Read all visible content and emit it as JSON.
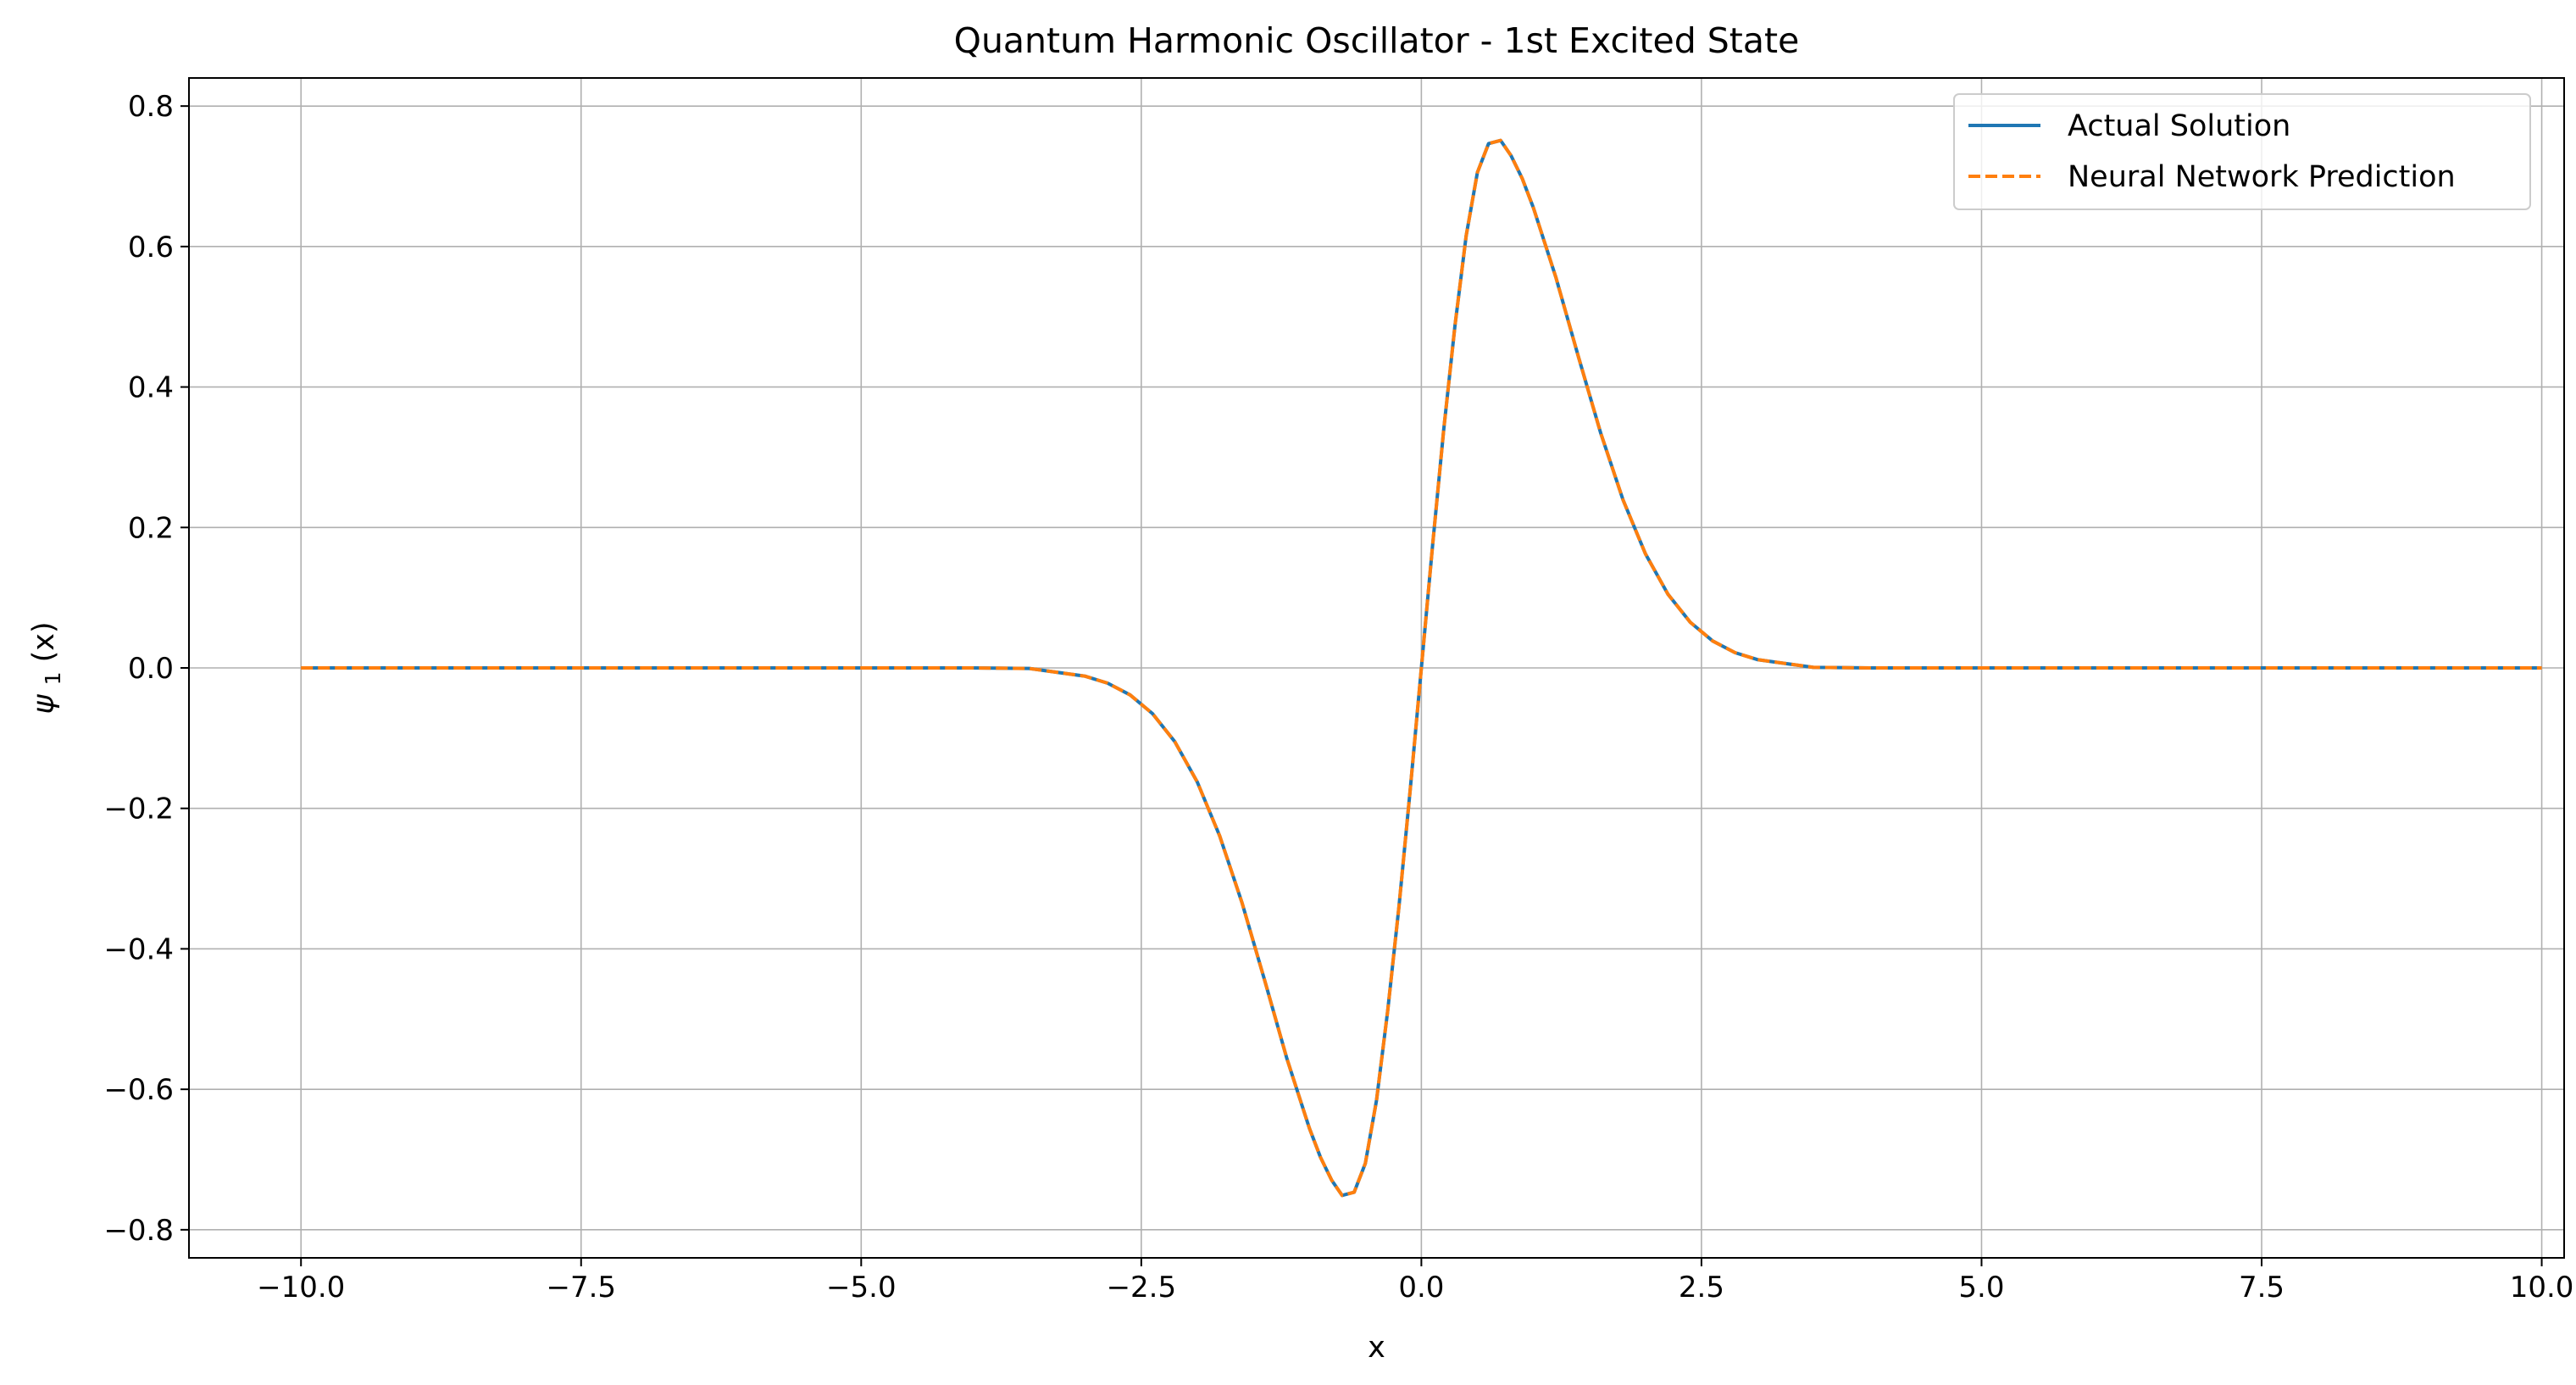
{
  "chart_data": {
    "type": "line",
    "title": "Quantum Harmonic Oscillator - 1st Excited State",
    "xlabel": "x",
    "ylabel": "ψ1(x)",
    "ylabel_base": "ψ",
    "ylabel_sub": "1",
    "ylabel_suffix": "(x)",
    "xlim": [
      -11.0,
      10.2
    ],
    "ylim": [
      -0.84,
      0.84
    ],
    "xticks": [
      -10.0,
      -7.5,
      -5.0,
      -2.5,
      0.0,
      2.5,
      5.0,
      7.5,
      10.0
    ],
    "xtick_labels": [
      "−10.0",
      "−7.5",
      "−5.0",
      "−2.5",
      "0.0",
      "2.5",
      "5.0",
      "7.5",
      "10.0"
    ],
    "yticks": [
      -0.8,
      -0.6,
      -0.4,
      -0.2,
      0.0,
      0.2,
      0.4,
      0.6,
      0.8
    ],
    "ytick_labels": [
      "−0.8",
      "−0.6",
      "−0.4",
      "−0.2",
      "0.0",
      "0.2",
      "0.4",
      "0.6",
      "0.8"
    ],
    "grid": true,
    "legend_position": "top-right",
    "series": [
      {
        "name": "Actual Solution",
        "color": "#1f77b4",
        "style": "solid",
        "x": [
          -10.0,
          -9.0,
          -8.0,
          -7.0,
          -6.0,
          -5.0,
          -4.0,
          -3.5,
          -3.0,
          -2.8,
          -2.6,
          -2.4,
          -2.2,
          -2.0,
          -1.8,
          -1.6,
          -1.4,
          -1.2,
          -1.0,
          -0.9,
          -0.8,
          -0.707,
          -0.6,
          -0.5,
          -0.4,
          -0.3,
          -0.2,
          -0.1,
          0.0,
          0.1,
          0.2,
          0.3,
          0.4,
          0.5,
          0.6,
          0.707,
          0.8,
          0.9,
          1.0,
          1.2,
          1.4,
          1.6,
          1.8,
          2.0,
          2.2,
          2.4,
          2.6,
          2.8,
          3.0,
          3.5,
          4.0,
          5.0,
          6.0,
          7.0,
          8.0,
          9.0,
          10.0
        ],
        "y": [
          0.0,
          0.0,
          0.0,
          0.0,
          0.0,
          0.0,
          0.0,
          -0.0008,
          -0.0118,
          -0.0217,
          -0.0384,
          -0.065,
          -0.1052,
          -0.1625,
          -0.2393,
          -0.3348,
          -0.4441,
          -0.5564,
          -0.6552,
          -0.697,
          -0.7296,
          -0.7511,
          -0.7466,
          -0.7054,
          -0.6154,
          -0.4874,
          -0.34,
          -0.1742,
          0.0,
          0.1742,
          0.34,
          0.4874,
          0.6154,
          0.7054,
          0.7466,
          0.7511,
          0.7296,
          0.697,
          0.6552,
          0.5564,
          0.4441,
          0.3348,
          0.2393,
          0.1625,
          0.1052,
          0.065,
          0.0384,
          0.0217,
          0.0118,
          0.0008,
          0.0,
          0.0,
          0.0,
          0.0,
          0.0,
          0.0,
          0.0
        ]
      },
      {
        "name": "Neural Network Prediction",
        "color": "#ff7f0e",
        "style": "dashed",
        "x": [
          -10.0,
          -9.0,
          -8.0,
          -7.0,
          -6.0,
          -5.0,
          -4.0,
          -3.5,
          -3.0,
          -2.8,
          -2.6,
          -2.4,
          -2.2,
          -2.0,
          -1.8,
          -1.6,
          -1.4,
          -1.2,
          -1.0,
          -0.9,
          -0.8,
          -0.707,
          -0.6,
          -0.5,
          -0.4,
          -0.3,
          -0.2,
          -0.1,
          0.0,
          0.1,
          0.2,
          0.3,
          0.4,
          0.5,
          0.6,
          0.707,
          0.8,
          0.9,
          1.0,
          1.2,
          1.4,
          1.6,
          1.8,
          2.0,
          2.2,
          2.4,
          2.6,
          2.8,
          3.0,
          3.5,
          4.0,
          5.0,
          6.0,
          7.0,
          8.0,
          9.0,
          10.0
        ],
        "y": [
          0.0,
          0.0,
          0.0,
          0.0,
          0.0,
          0.0,
          0.0,
          -0.0008,
          -0.0118,
          -0.0217,
          -0.0384,
          -0.065,
          -0.1052,
          -0.1625,
          -0.2393,
          -0.3348,
          -0.4441,
          -0.5564,
          -0.6552,
          -0.697,
          -0.7296,
          -0.7511,
          -0.7466,
          -0.7054,
          -0.6154,
          -0.4874,
          -0.34,
          -0.1742,
          0.0,
          0.1742,
          0.34,
          0.4874,
          0.6154,
          0.7054,
          0.7466,
          0.7511,
          0.7296,
          0.697,
          0.6552,
          0.5564,
          0.4441,
          0.3348,
          0.2393,
          0.1625,
          0.1052,
          0.065,
          0.0384,
          0.0217,
          0.0118,
          0.0008,
          0.0,
          0.0,
          0.0,
          0.0,
          0.0,
          0.0,
          0.0
        ]
      }
    ]
  }
}
